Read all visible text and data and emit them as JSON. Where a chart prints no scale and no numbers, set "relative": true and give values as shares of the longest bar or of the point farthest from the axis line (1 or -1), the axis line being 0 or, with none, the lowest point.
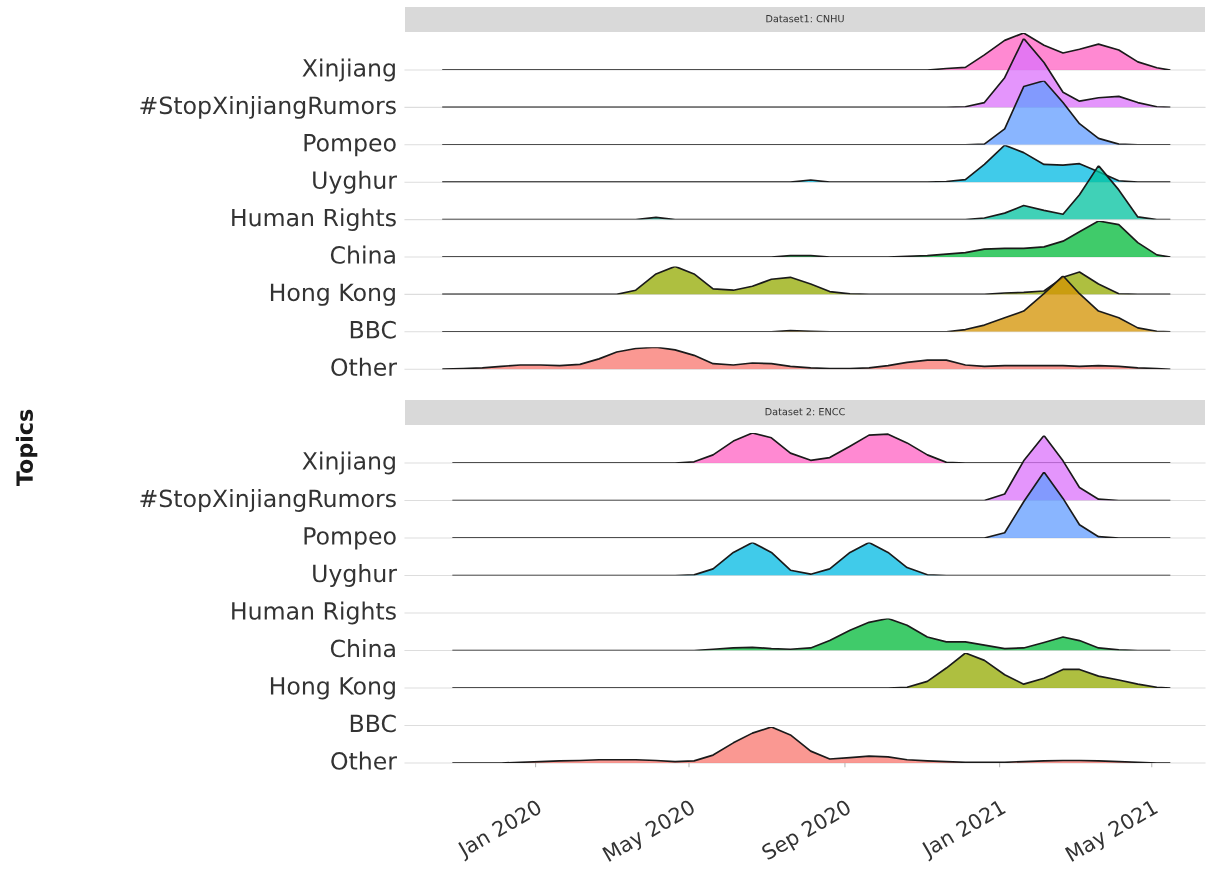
{
  "chart_data": [
    {
      "type": "area",
      "relative": true,
      "title": "Dataset1: CNHU",
      "tick_labels": false,
      "xlim": [
        "2019-09-20",
        "2021-06-12"
      ],
      "x": [
        "2019-10-20",
        "2019-11-05",
        "2019-11-20",
        "2019-12-05",
        "2019-12-20",
        "2020-01-05",
        "2020-01-20",
        "2020-02-05",
        "2020-02-20",
        "2020-03-05",
        "2020-03-20",
        "2020-04-05",
        "2020-04-20",
        "2020-05-05",
        "2020-05-20",
        "2020-06-05",
        "2020-06-20",
        "2020-07-05",
        "2020-07-20",
        "2020-08-05",
        "2020-08-20",
        "2020-09-05",
        "2020-09-20",
        "2020-10-05",
        "2020-10-20",
        "2020-11-05",
        "2020-11-20",
        "2020-12-05",
        "2020-12-20",
        "2021-01-05",
        "2021-01-20",
        "2021-02-05",
        "2021-02-20",
        "2021-03-05",
        "2021-03-20",
        "2021-04-05",
        "2021-04-20",
        "2021-05-05",
        "2021-05-15"
      ],
      "series": [
        {
          "name": "Xinjiang",
          "color": "#ff61c3",
          "values": [
            0,
            0,
            0,
            0,
            0,
            0,
            0,
            0,
            0,
            0,
            0,
            0,
            0,
            0,
            0,
            0,
            0,
            0,
            0,
            0,
            0,
            0,
            0,
            0,
            0,
            0,
            0.04,
            0.07,
            0.41,
            0.8,
            1,
            0.67,
            0.46,
            0.56,
            0.7,
            0.54,
            0.22,
            0.06,
            0
          ]
        }
      ]
    },
    {
      "type": "area",
      "relative": true,
      "tick_labels": false,
      "xlim": [
        "2019-09-20",
        "2021-06-12"
      ],
      "x": [
        "2019-10-20",
        "2019-11-05",
        "2019-11-20",
        "2019-12-05",
        "2019-12-20",
        "2020-01-05",
        "2020-01-20",
        "2020-02-05",
        "2020-02-20",
        "2020-03-05",
        "2020-03-20",
        "2020-04-05",
        "2020-04-20",
        "2020-05-05",
        "2020-05-20",
        "2020-06-05",
        "2020-06-20",
        "2020-07-05",
        "2020-07-20",
        "2020-08-05",
        "2020-08-20",
        "2020-09-05",
        "2020-09-20",
        "2020-10-05",
        "2020-10-20",
        "2020-11-05",
        "2020-11-20",
        "2020-12-05",
        "2020-12-20",
        "2021-01-05",
        "2021-01-20",
        "2021-02-05",
        "2021-02-20",
        "2021-03-05",
        "2021-03-20",
        "2021-04-05",
        "2021-04-20",
        "2021-05-05",
        "2021-05-15"
      ],
      "series": [
        {
          "name": "#StopXinjiangRumors",
          "color": "#db72fb",
          "values": [
            0,
            0,
            0,
            0,
            0,
            0,
            0,
            0,
            0,
            0,
            0,
            0,
            0,
            0,
            0,
            0,
            0,
            0,
            0,
            0,
            0,
            0,
            0,
            0,
            0,
            0,
            0,
            0.01,
            0.07,
            0.43,
            1,
            0.65,
            0.22,
            0.09,
            0.14,
            0.16,
            0.07,
            0.01,
            0
          ]
        }
      ]
    },
    {
      "type": "area",
      "relative": true,
      "tick_labels": false,
      "xlim": [
        "2019-09-20",
        "2021-06-12"
      ],
      "x": [
        "2019-10-20",
        "2019-11-05",
        "2019-11-20",
        "2019-12-05",
        "2019-12-20",
        "2020-01-05",
        "2020-01-20",
        "2020-02-05",
        "2020-02-20",
        "2020-03-05",
        "2020-03-20",
        "2020-04-05",
        "2020-04-20",
        "2020-05-05",
        "2020-05-20",
        "2020-06-05",
        "2020-06-20",
        "2020-07-05",
        "2020-07-20",
        "2020-08-05",
        "2020-08-20",
        "2020-09-05",
        "2020-09-20",
        "2020-10-05",
        "2020-10-20",
        "2020-11-05",
        "2020-11-20",
        "2020-12-05",
        "2020-12-20",
        "2021-01-05",
        "2021-01-20",
        "2021-02-05",
        "2021-02-20",
        "2021-03-05",
        "2021-03-20",
        "2021-04-05",
        "2021-04-20",
        "2021-05-05",
        "2021-05-15"
      ],
      "series": [
        {
          "name": "Pompeo",
          "color": "#619cff",
          "values": [
            0,
            0,
            0,
            0,
            0,
            0,
            0,
            0,
            0,
            0,
            0,
            0,
            0,
            0,
            0,
            0,
            0,
            0,
            0,
            0,
            0,
            0,
            0,
            0,
            0,
            0,
            0,
            0,
            0.01,
            0.25,
            0.91,
            1,
            0.66,
            0.33,
            0.1,
            0.01,
            0,
            0,
            0
          ]
        }
      ]
    },
    {
      "type": "area",
      "relative": true,
      "tick_labels": false,
      "xlim": [
        "2019-09-20",
        "2021-06-12"
      ],
      "x": [
        "2019-10-20",
        "2019-11-05",
        "2019-11-20",
        "2019-12-05",
        "2019-12-20",
        "2020-01-05",
        "2020-01-20",
        "2020-02-05",
        "2020-02-20",
        "2020-03-05",
        "2020-03-20",
        "2020-04-05",
        "2020-04-20",
        "2020-05-05",
        "2020-05-20",
        "2020-06-05",
        "2020-06-20",
        "2020-07-05",
        "2020-07-20",
        "2020-08-05",
        "2020-08-20",
        "2020-09-05",
        "2020-09-20",
        "2020-10-05",
        "2020-10-20",
        "2020-11-05",
        "2020-11-20",
        "2020-12-05",
        "2020-12-20",
        "2021-01-05",
        "2021-01-20",
        "2021-02-05",
        "2021-02-20",
        "2021-03-05",
        "2021-03-20",
        "2021-04-05",
        "2021-04-20",
        "2021-05-05",
        "2021-05-15"
      ],
      "series": [
        {
          "name": "Uyghur",
          "color": "#00b9e3",
          "values": [
            0,
            0,
            0,
            0,
            0,
            0,
            0,
            0,
            0,
            0,
            0,
            0,
            0,
            0,
            0,
            0,
            0,
            0,
            0,
            0.06,
            0,
            0,
            0,
            0,
            0,
            0,
            0.02,
            0.07,
            0.48,
            1,
            0.8,
            0.48,
            0.46,
            0.5,
            0.28,
            0.04,
            0,
            0,
            0
          ]
        }
      ]
    },
    {
      "type": "area",
      "relative": true,
      "tick_labels": false,
      "xlim": [
        "2019-09-20",
        "2021-06-12"
      ],
      "x": [
        "2019-10-20",
        "2019-11-05",
        "2019-11-20",
        "2019-12-05",
        "2019-12-20",
        "2020-01-05",
        "2020-01-20",
        "2020-02-05",
        "2020-02-20",
        "2020-03-05",
        "2020-03-20",
        "2020-04-05",
        "2020-04-20",
        "2020-05-05",
        "2020-05-20",
        "2020-06-05",
        "2020-06-20",
        "2020-07-05",
        "2020-07-20",
        "2020-08-05",
        "2020-08-20",
        "2020-09-05",
        "2020-09-20",
        "2020-10-05",
        "2020-10-20",
        "2020-11-05",
        "2020-11-20",
        "2020-12-05",
        "2020-12-20",
        "2021-01-05",
        "2021-01-20",
        "2021-02-05",
        "2021-02-20",
        "2021-03-05",
        "2021-03-20",
        "2021-04-05",
        "2021-04-20",
        "2021-05-05",
        "2021-05-15"
      ],
      "series": [
        {
          "name": "Human Rights",
          "color": "#00c19f",
          "values": [
            0,
            0,
            0,
            0,
            0,
            0,
            0,
            0,
            0,
            0,
            0,
            0.04,
            0,
            0,
            0,
            0,
            0,
            0,
            0,
            0,
            0,
            0,
            0,
            0,
            0,
            0,
            0,
            0,
            0.03,
            0.12,
            0.26,
            0.17,
            0.1,
            0.46,
            1,
            0.55,
            0.05,
            0,
            0
          ]
        }
      ]
    },
    {
      "type": "area",
      "relative": true,
      "tick_labels": false,
      "xlim": [
        "2019-09-20",
        "2021-06-12"
      ],
      "x": [
        "2019-10-20",
        "2019-11-05",
        "2019-11-20",
        "2019-12-05",
        "2019-12-20",
        "2020-01-05",
        "2020-01-20",
        "2020-02-05",
        "2020-02-20",
        "2020-03-05",
        "2020-03-20",
        "2020-04-05",
        "2020-04-20",
        "2020-05-05",
        "2020-05-20",
        "2020-06-05",
        "2020-06-20",
        "2020-07-05",
        "2020-07-20",
        "2020-08-05",
        "2020-08-20",
        "2020-09-05",
        "2020-09-20",
        "2020-10-05",
        "2020-10-20",
        "2020-11-05",
        "2020-11-20",
        "2020-12-05",
        "2020-12-20",
        "2021-01-05",
        "2021-01-20",
        "2021-02-05",
        "2021-02-20",
        "2021-03-05",
        "2021-03-20",
        "2021-04-05",
        "2021-04-20",
        "2021-05-05",
        "2021-05-15"
      ],
      "series": [
        {
          "name": "China",
          "color": "#00ba38",
          "values": [
            0,
            0,
            0,
            0,
            0,
            0,
            0,
            0,
            0,
            0,
            0,
            0,
            0,
            0,
            0,
            0,
            0,
            0,
            0.04,
            0.04,
            0,
            0,
            0,
            0,
            0.02,
            0.04,
            0.08,
            0.12,
            0.22,
            0.24,
            0.24,
            0.28,
            0.44,
            0.7,
            1,
            0.9,
            0.4,
            0.06,
            0
          ]
        }
      ]
    },
    {
      "type": "area",
      "relative": true,
      "tick_labels": false,
      "xlim": [
        "2019-09-20",
        "2021-06-12"
      ],
      "x": [
        "2019-10-20",
        "2019-11-05",
        "2019-11-20",
        "2019-12-05",
        "2019-12-20",
        "2020-01-05",
        "2020-01-20",
        "2020-02-05",
        "2020-02-20",
        "2020-03-05",
        "2020-03-20",
        "2020-04-05",
        "2020-04-20",
        "2020-05-05",
        "2020-05-20",
        "2020-06-05",
        "2020-06-20",
        "2020-07-05",
        "2020-07-20",
        "2020-08-05",
        "2020-08-20",
        "2020-09-05",
        "2020-09-20",
        "2020-10-05",
        "2020-10-20",
        "2020-11-05",
        "2020-11-20",
        "2020-12-05",
        "2020-12-20",
        "2021-01-05",
        "2021-01-20",
        "2021-02-05",
        "2021-02-20",
        "2021-03-05",
        "2021-03-20",
        "2021-04-05",
        "2021-04-20",
        "2021-05-05",
        "2021-05-15"
      ],
      "series": [
        {
          "name": "Hong Kong",
          "color": "#93aa00",
          "values": [
            0,
            0,
            0,
            0,
            0,
            0,
            0,
            0,
            0,
            0,
            0.15,
            0.73,
            1,
            0.73,
            0.2,
            0.15,
            0.29,
            0.54,
            0.61,
            0.37,
            0.1,
            0.02,
            0,
            0,
            0,
            0,
            0,
            0,
            0,
            0.05,
            0.07,
            0.12,
            0.61,
            0.8,
            0.37,
            0.02,
            0,
            0,
            0
          ]
        }
      ]
    },
    {
      "type": "area",
      "relative": true,
      "tick_labels": false,
      "xlim": [
        "2019-09-20",
        "2021-06-12"
      ],
      "x": [
        "2019-10-20",
        "2019-11-05",
        "2019-11-20",
        "2019-12-05",
        "2019-12-20",
        "2020-01-05",
        "2020-01-20",
        "2020-02-05",
        "2020-02-20",
        "2020-03-05",
        "2020-03-20",
        "2020-04-05",
        "2020-04-20",
        "2020-05-05",
        "2020-05-20",
        "2020-06-05",
        "2020-06-20",
        "2020-07-05",
        "2020-07-20",
        "2020-08-05",
        "2020-08-20",
        "2020-09-05",
        "2020-09-20",
        "2020-10-05",
        "2020-10-20",
        "2020-11-05",
        "2020-11-20",
        "2020-12-05",
        "2020-12-20",
        "2021-01-05",
        "2021-01-20",
        "2021-02-05",
        "2021-02-20",
        "2021-03-05",
        "2021-03-20",
        "2021-04-05",
        "2021-04-20",
        "2021-05-05",
        "2021-05-15"
      ],
      "series": [
        {
          "name": "BBC",
          "color": "#d39200",
          "values": [
            0,
            0,
            0,
            0,
            0,
            0,
            0,
            0,
            0,
            0,
            0,
            0,
            0,
            0,
            0,
            0,
            0,
            0,
            0.02,
            0.01,
            0,
            0,
            0,
            0,
            0,
            0,
            0,
            0.04,
            0.12,
            0.25,
            0.37,
            0.68,
            1,
            0.68,
            0.37,
            0.25,
            0.07,
            0.01,
            0
          ]
        }
      ]
    },
    {
      "type": "area",
      "relative": true,
      "tick_labels": false,
      "xlim": [
        "2019-09-20",
        "2021-06-12"
      ],
      "x": [
        "2019-10-20",
        "2019-11-05",
        "2019-11-20",
        "2019-12-05",
        "2019-12-20",
        "2020-01-05",
        "2020-01-20",
        "2020-02-05",
        "2020-02-20",
        "2020-03-05",
        "2020-03-20",
        "2020-04-05",
        "2020-04-20",
        "2020-05-05",
        "2020-05-20",
        "2020-06-05",
        "2020-06-20",
        "2020-07-05",
        "2020-07-20",
        "2020-08-05",
        "2020-08-20",
        "2020-09-05",
        "2020-09-20",
        "2020-10-05",
        "2020-10-20",
        "2020-11-05",
        "2020-11-20",
        "2020-12-05",
        "2020-12-20",
        "2021-01-05",
        "2021-01-20",
        "2021-02-05",
        "2021-02-20",
        "2021-03-05",
        "2021-03-20",
        "2021-04-05",
        "2021-04-20",
        "2021-05-05",
        "2021-05-15"
      ],
      "series": [
        {
          "name": "Other",
          "color": "#f8766d",
          "values": [
            0,
            0.03,
            0.06,
            0.13,
            0.19,
            0.19,
            0.16,
            0.22,
            0.47,
            0.78,
            0.94,
            1,
            0.88,
            0.63,
            0.25,
            0.19,
            0.28,
            0.25,
            0.13,
            0.06,
            0.03,
            0.03,
            0.06,
            0.16,
            0.31,
            0.41,
            0.41,
            0.19,
            0.13,
            0.16,
            0.16,
            0.16,
            0.16,
            0.13,
            0.16,
            0.13,
            0.06,
            0.03,
            0
          ]
        }
      ]
    },
    {
      "type": "area",
      "relative": true,
      "title": "Dataset 2: ENCC",
      "ylabel": "Topics",
      "tick_labels": false,
      "xlim": [
        "2019-09-20",
        "2021-06-12"
      ],
      "x": [
        "2019-10-28",
        "2019-11-05",
        "2019-11-20",
        "2019-12-05",
        "2019-12-20",
        "2020-01-05",
        "2020-01-20",
        "2020-02-05",
        "2020-02-20",
        "2020-03-05",
        "2020-03-20",
        "2020-04-05",
        "2020-04-20",
        "2020-05-05",
        "2020-05-20",
        "2020-06-05",
        "2020-06-20",
        "2020-07-05",
        "2020-07-20",
        "2020-08-05",
        "2020-08-20",
        "2020-09-05",
        "2020-09-20",
        "2020-10-05",
        "2020-10-20",
        "2020-11-05",
        "2020-11-20",
        "2020-12-05",
        "2020-12-20",
        "2021-01-05",
        "2021-01-20",
        "2021-02-05",
        "2021-02-20",
        "2021-03-05",
        "2021-03-20",
        "2021-04-05",
        "2021-04-20",
        "2021-05-05",
        "2021-05-15"
      ],
      "series": [
        {
          "name": "Xinjiang",
          "color": "#ff61c3",
          "values": [
            0,
            0,
            0,
            0,
            0,
            0,
            0,
            0,
            0,
            0,
            0,
            0,
            0,
            0.04,
            0.27,
            0.73,
            1,
            0.84,
            0.33,
            0.09,
            0.18,
            0.56,
            0.93,
            0.96,
            0.67,
            0.27,
            0.02,
            0,
            0,
            0,
            0,
            0,
            0,
            0,
            0,
            0,
            0,
            0,
            0
          ]
        }
      ]
    },
    {
      "type": "area",
      "relative": true,
      "tick_labels": false,
      "xlim": [
        "2019-09-20",
        "2021-06-12"
      ],
      "x": [
        "2019-10-28",
        "2019-11-05",
        "2019-11-20",
        "2019-12-05",
        "2019-12-20",
        "2020-01-05",
        "2020-01-20",
        "2020-02-05",
        "2020-02-20",
        "2020-03-05",
        "2020-03-20",
        "2020-04-05",
        "2020-04-20",
        "2020-05-05",
        "2020-05-20",
        "2020-06-05",
        "2020-06-20",
        "2020-07-05",
        "2020-07-20",
        "2020-08-05",
        "2020-08-20",
        "2020-09-05",
        "2020-09-20",
        "2020-10-05",
        "2020-10-20",
        "2020-11-05",
        "2020-11-20",
        "2020-12-05",
        "2020-12-20",
        "2021-01-05",
        "2021-01-20",
        "2021-02-05",
        "2021-02-20",
        "2021-03-05",
        "2021-03-20",
        "2021-04-05",
        "2021-04-20",
        "2021-05-05",
        "2021-05-15"
      ],
      "series": [
        {
          "name": "#StopXinjiangRumors",
          "color": "#db72fb",
          "values": [
            0,
            0,
            0,
            0,
            0,
            0,
            0,
            0,
            0,
            0,
            0,
            0,
            0,
            0,
            0,
            0,
            0,
            0,
            0,
            0,
            0,
            0,
            0,
            0,
            0,
            0,
            0,
            0,
            0,
            0.1,
            0.61,
            1,
            0.61,
            0.2,
            0.02,
            0,
            0,
            0,
            0
          ]
        }
      ]
    },
    {
      "type": "area",
      "relative": true,
      "tick_labels": false,
      "xlim": [
        "2019-09-20",
        "2021-06-12"
      ],
      "x": [
        "2019-10-28",
        "2019-11-05",
        "2019-11-20",
        "2019-12-05",
        "2019-12-20",
        "2020-01-05",
        "2020-01-20",
        "2020-02-05",
        "2020-02-20",
        "2020-03-05",
        "2020-03-20",
        "2020-04-05",
        "2020-04-20",
        "2020-05-05",
        "2020-05-20",
        "2020-06-05",
        "2020-06-20",
        "2020-07-05",
        "2020-07-20",
        "2020-08-05",
        "2020-08-20",
        "2020-09-05",
        "2020-09-20",
        "2020-10-05",
        "2020-10-20",
        "2020-11-05",
        "2020-11-20",
        "2020-12-05",
        "2020-12-20",
        "2021-01-05",
        "2021-01-20",
        "2021-02-05",
        "2021-02-20",
        "2021-03-05",
        "2021-03-20",
        "2021-04-05",
        "2021-04-20",
        "2021-05-05",
        "2021-05-15"
      ],
      "series": [
        {
          "name": "Pompeo",
          "color": "#619cff",
          "values": [
            0,
            0,
            0,
            0,
            0,
            0,
            0,
            0,
            0,
            0,
            0,
            0,
            0,
            0,
            0,
            0,
            0,
            0,
            0,
            0,
            0,
            0,
            0,
            0,
            0,
            0,
            0,
            0,
            0,
            0.08,
            0.55,
            1,
            0.6,
            0.2,
            0.02,
            0,
            0,
            0,
            0
          ]
        }
      ]
    },
    {
      "type": "area",
      "relative": true,
      "tick_labels": false,
      "xlim": [
        "2019-09-20",
        "2021-06-12"
      ],
      "x": [
        "2019-10-28",
        "2019-11-05",
        "2019-11-20",
        "2019-12-05",
        "2019-12-20",
        "2020-01-05",
        "2020-01-20",
        "2020-02-05",
        "2020-02-20",
        "2020-03-05",
        "2020-03-20",
        "2020-04-05",
        "2020-04-20",
        "2020-05-05",
        "2020-05-20",
        "2020-06-05",
        "2020-06-20",
        "2020-07-05",
        "2020-07-20",
        "2020-08-05",
        "2020-08-20",
        "2020-09-05",
        "2020-09-20",
        "2020-10-05",
        "2020-10-20",
        "2020-11-05",
        "2020-11-20",
        "2020-12-05",
        "2020-12-20",
        "2021-01-05",
        "2021-01-20",
        "2021-02-05",
        "2021-02-20",
        "2021-03-05",
        "2021-03-20",
        "2021-04-05",
        "2021-04-20",
        "2021-05-05",
        "2021-05-15"
      ],
      "series": [
        {
          "name": "Uyghur",
          "color": "#00b9e3",
          "values": [
            0,
            0,
            0,
            0,
            0,
            0,
            0,
            0,
            0,
            0,
            0,
            0,
            0,
            0.02,
            0.2,
            0.7,
            1,
            0.7,
            0.16,
            0.04,
            0.2,
            0.7,
            1,
            0.7,
            0.24,
            0.02,
            0,
            0,
            0,
            0,
            0,
            0,
            0,
            0,
            0,
            0,
            0,
            0,
            0
          ]
        }
      ]
    },
    {
      "type": "other",
      "annotations": [
        "Human Rights"
      ]
    },
    {
      "type": "area",
      "relative": true,
      "tick_labels": false,
      "xlim": [
        "2019-09-20",
        "2021-06-12"
      ],
      "x": [
        "2019-10-28",
        "2019-11-05",
        "2019-11-20",
        "2019-12-05",
        "2019-12-20",
        "2020-01-05",
        "2020-01-20",
        "2020-02-05",
        "2020-02-20",
        "2020-03-05",
        "2020-03-20",
        "2020-04-05",
        "2020-04-20",
        "2020-05-05",
        "2020-05-20",
        "2020-06-05",
        "2020-06-20",
        "2020-07-05",
        "2020-07-20",
        "2020-08-05",
        "2020-08-20",
        "2020-09-05",
        "2020-09-20",
        "2020-10-05",
        "2020-10-20",
        "2020-11-05",
        "2020-11-20",
        "2020-12-05",
        "2020-12-20",
        "2021-01-05",
        "2021-01-20",
        "2021-02-05",
        "2021-02-20",
        "2021-03-05",
        "2021-03-20",
        "2021-04-05",
        "2021-04-20",
        "2021-05-05",
        "2021-05-15"
      ],
      "series": [
        {
          "name": "China",
          "color": "#00ba38",
          "values": [
            0,
            0,
            0,
            0,
            0,
            0,
            0,
            0,
            0,
            0,
            0,
            0,
            0,
            0,
            0.04,
            0.08,
            0.1,
            0.06,
            0.04,
            0.08,
            0.31,
            0.63,
            0.88,
            1,
            0.79,
            0.42,
            0.27,
            0.27,
            0.17,
            0.06,
            0.08,
            0.25,
            0.42,
            0.31,
            0.08,
            0.02,
            0,
            0,
            0
          ]
        }
      ]
    },
    {
      "type": "area",
      "relative": true,
      "tick_labels": false,
      "xlim": [
        "2019-09-20",
        "2021-06-12"
      ],
      "x": [
        "2019-10-28",
        "2019-11-05",
        "2019-11-20",
        "2019-12-05",
        "2019-12-20",
        "2020-01-05",
        "2020-01-20",
        "2020-02-05",
        "2020-02-20",
        "2020-03-05",
        "2020-03-20",
        "2020-04-05",
        "2020-04-20",
        "2020-05-05",
        "2020-05-20",
        "2020-06-05",
        "2020-06-20",
        "2020-07-05",
        "2020-07-20",
        "2020-08-05",
        "2020-08-20",
        "2020-09-05",
        "2020-09-20",
        "2020-10-05",
        "2020-10-20",
        "2020-11-05",
        "2020-11-20",
        "2020-12-05",
        "2020-12-20",
        "2021-01-05",
        "2021-01-20",
        "2021-02-05",
        "2021-02-20",
        "2021-03-05",
        "2021-03-20",
        "2021-04-05",
        "2021-04-20",
        "2021-05-05",
        "2021-05-15"
      ],
      "series": [
        {
          "name": "Hong Kong",
          "color": "#93aa00",
          "values": [
            0,
            0,
            0,
            0,
            0,
            0,
            0,
            0,
            0,
            0,
            0,
            0,
            0,
            0,
            0,
            0,
            0,
            0,
            0,
            0,
            0,
            0,
            0,
            0,
            0.02,
            0.19,
            0.57,
            1,
            0.79,
            0.38,
            0.11,
            0.28,
            0.53,
            0.53,
            0.34,
            0.23,
            0.11,
            0.02,
            0
          ]
        }
      ]
    },
    {
      "type": "other",
      "annotations": [
        "BBC"
      ]
    },
    {
      "type": "area",
      "relative": true,
      "tick_labels": "x",
      "xlim": [
        "2019-09-20",
        "2021-06-12"
      ],
      "xticks": [
        {
          "value": "2020-01-01",
          "label": "Jan 2020"
        },
        {
          "value": "2020-05-01",
          "label": "May 2020"
        },
        {
          "value": "2020-09-01",
          "label": "Sep 2020"
        },
        {
          "value": "2021-01-01",
          "label": "Jan 2021"
        },
        {
          "value": "2021-05-01",
          "label": "May 2021"
        }
      ],
      "x": [
        "2019-10-28",
        "2019-11-05",
        "2019-11-20",
        "2019-12-05",
        "2019-12-20",
        "2020-01-05",
        "2020-01-20",
        "2020-02-05",
        "2020-02-20",
        "2020-03-05",
        "2020-03-20",
        "2020-04-05",
        "2020-04-20",
        "2020-05-05",
        "2020-05-20",
        "2020-06-05",
        "2020-06-20",
        "2020-07-05",
        "2020-07-20",
        "2020-08-05",
        "2020-08-20",
        "2020-09-05",
        "2020-09-20",
        "2020-10-05",
        "2020-10-20",
        "2020-11-05",
        "2020-11-20",
        "2020-12-05",
        "2020-12-20",
        "2021-01-05",
        "2021-01-20",
        "2021-02-05",
        "2021-02-20",
        "2021-03-05",
        "2021-03-20",
        "2021-04-05",
        "2021-04-20",
        "2021-05-05",
        "2021-05-15"
      ],
      "series": [
        {
          "name": "Other",
          "color": "#f8766d",
          "values": [
            0,
            0,
            0,
            0,
            0.02,
            0.04,
            0.06,
            0.07,
            0.09,
            0.09,
            0.09,
            0.07,
            0.04,
            0.06,
            0.22,
            0.56,
            0.83,
            1,
            0.78,
            0.33,
            0.11,
            0.15,
            0.19,
            0.17,
            0.09,
            0.06,
            0.04,
            0.02,
            0.02,
            0.02,
            0.04,
            0.06,
            0.07,
            0.07,
            0.06,
            0.04,
            0.02,
            0,
            0
          ]
        }
      ]
    }
  ]
}
